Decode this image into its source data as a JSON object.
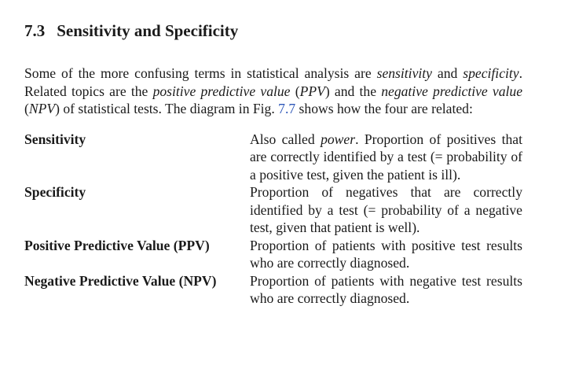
{
  "section": {
    "number": "7.3",
    "title": "Sensitivity and Specificity"
  },
  "intro": {
    "t1": "Some of the more confusing terms in statistical analysis are ",
    "e1": "sensitivity",
    "t2": " and ",
    "e2": "specificity",
    "t3": ". Related topics are the ",
    "e3": "positive predictive value",
    "t4": " (",
    "e4": "PPV",
    "t5": ") and the ",
    "e5": "negative predictive value",
    "t6": " (",
    "e6": "NPV",
    "t7": ") of statistical tests. The diagram in Fig. ",
    "fig_ref": "7.7",
    "t8": " shows how the four are related:"
  },
  "definitions": [
    {
      "term": "Sensitivity",
      "pre": "Also called ",
      "em": "power",
      "post": ". Proportion of positives that are correctly identified by a test (= probability of a positive test, given the patient is ill)."
    },
    {
      "term": "Specificity",
      "pre": "Proportion of negatives that are correctly identified by a test (= probability of a negative test, given that patient is well).",
      "em": "",
      "post": ""
    },
    {
      "term": "Positive Predictive Value (PPV)",
      "pre": "Proportion of patients with positive test results who are correctly diagnosed.",
      "em": "",
      "post": ""
    },
    {
      "term": "Negative Predictive Value (NPV)",
      "pre": "Proportion of patients with negative test results who are correctly diagnosed.",
      "em": "",
      "post": ""
    }
  ],
  "colors": {
    "link": "#2c56b8",
    "text": "#1a1a1a"
  }
}
